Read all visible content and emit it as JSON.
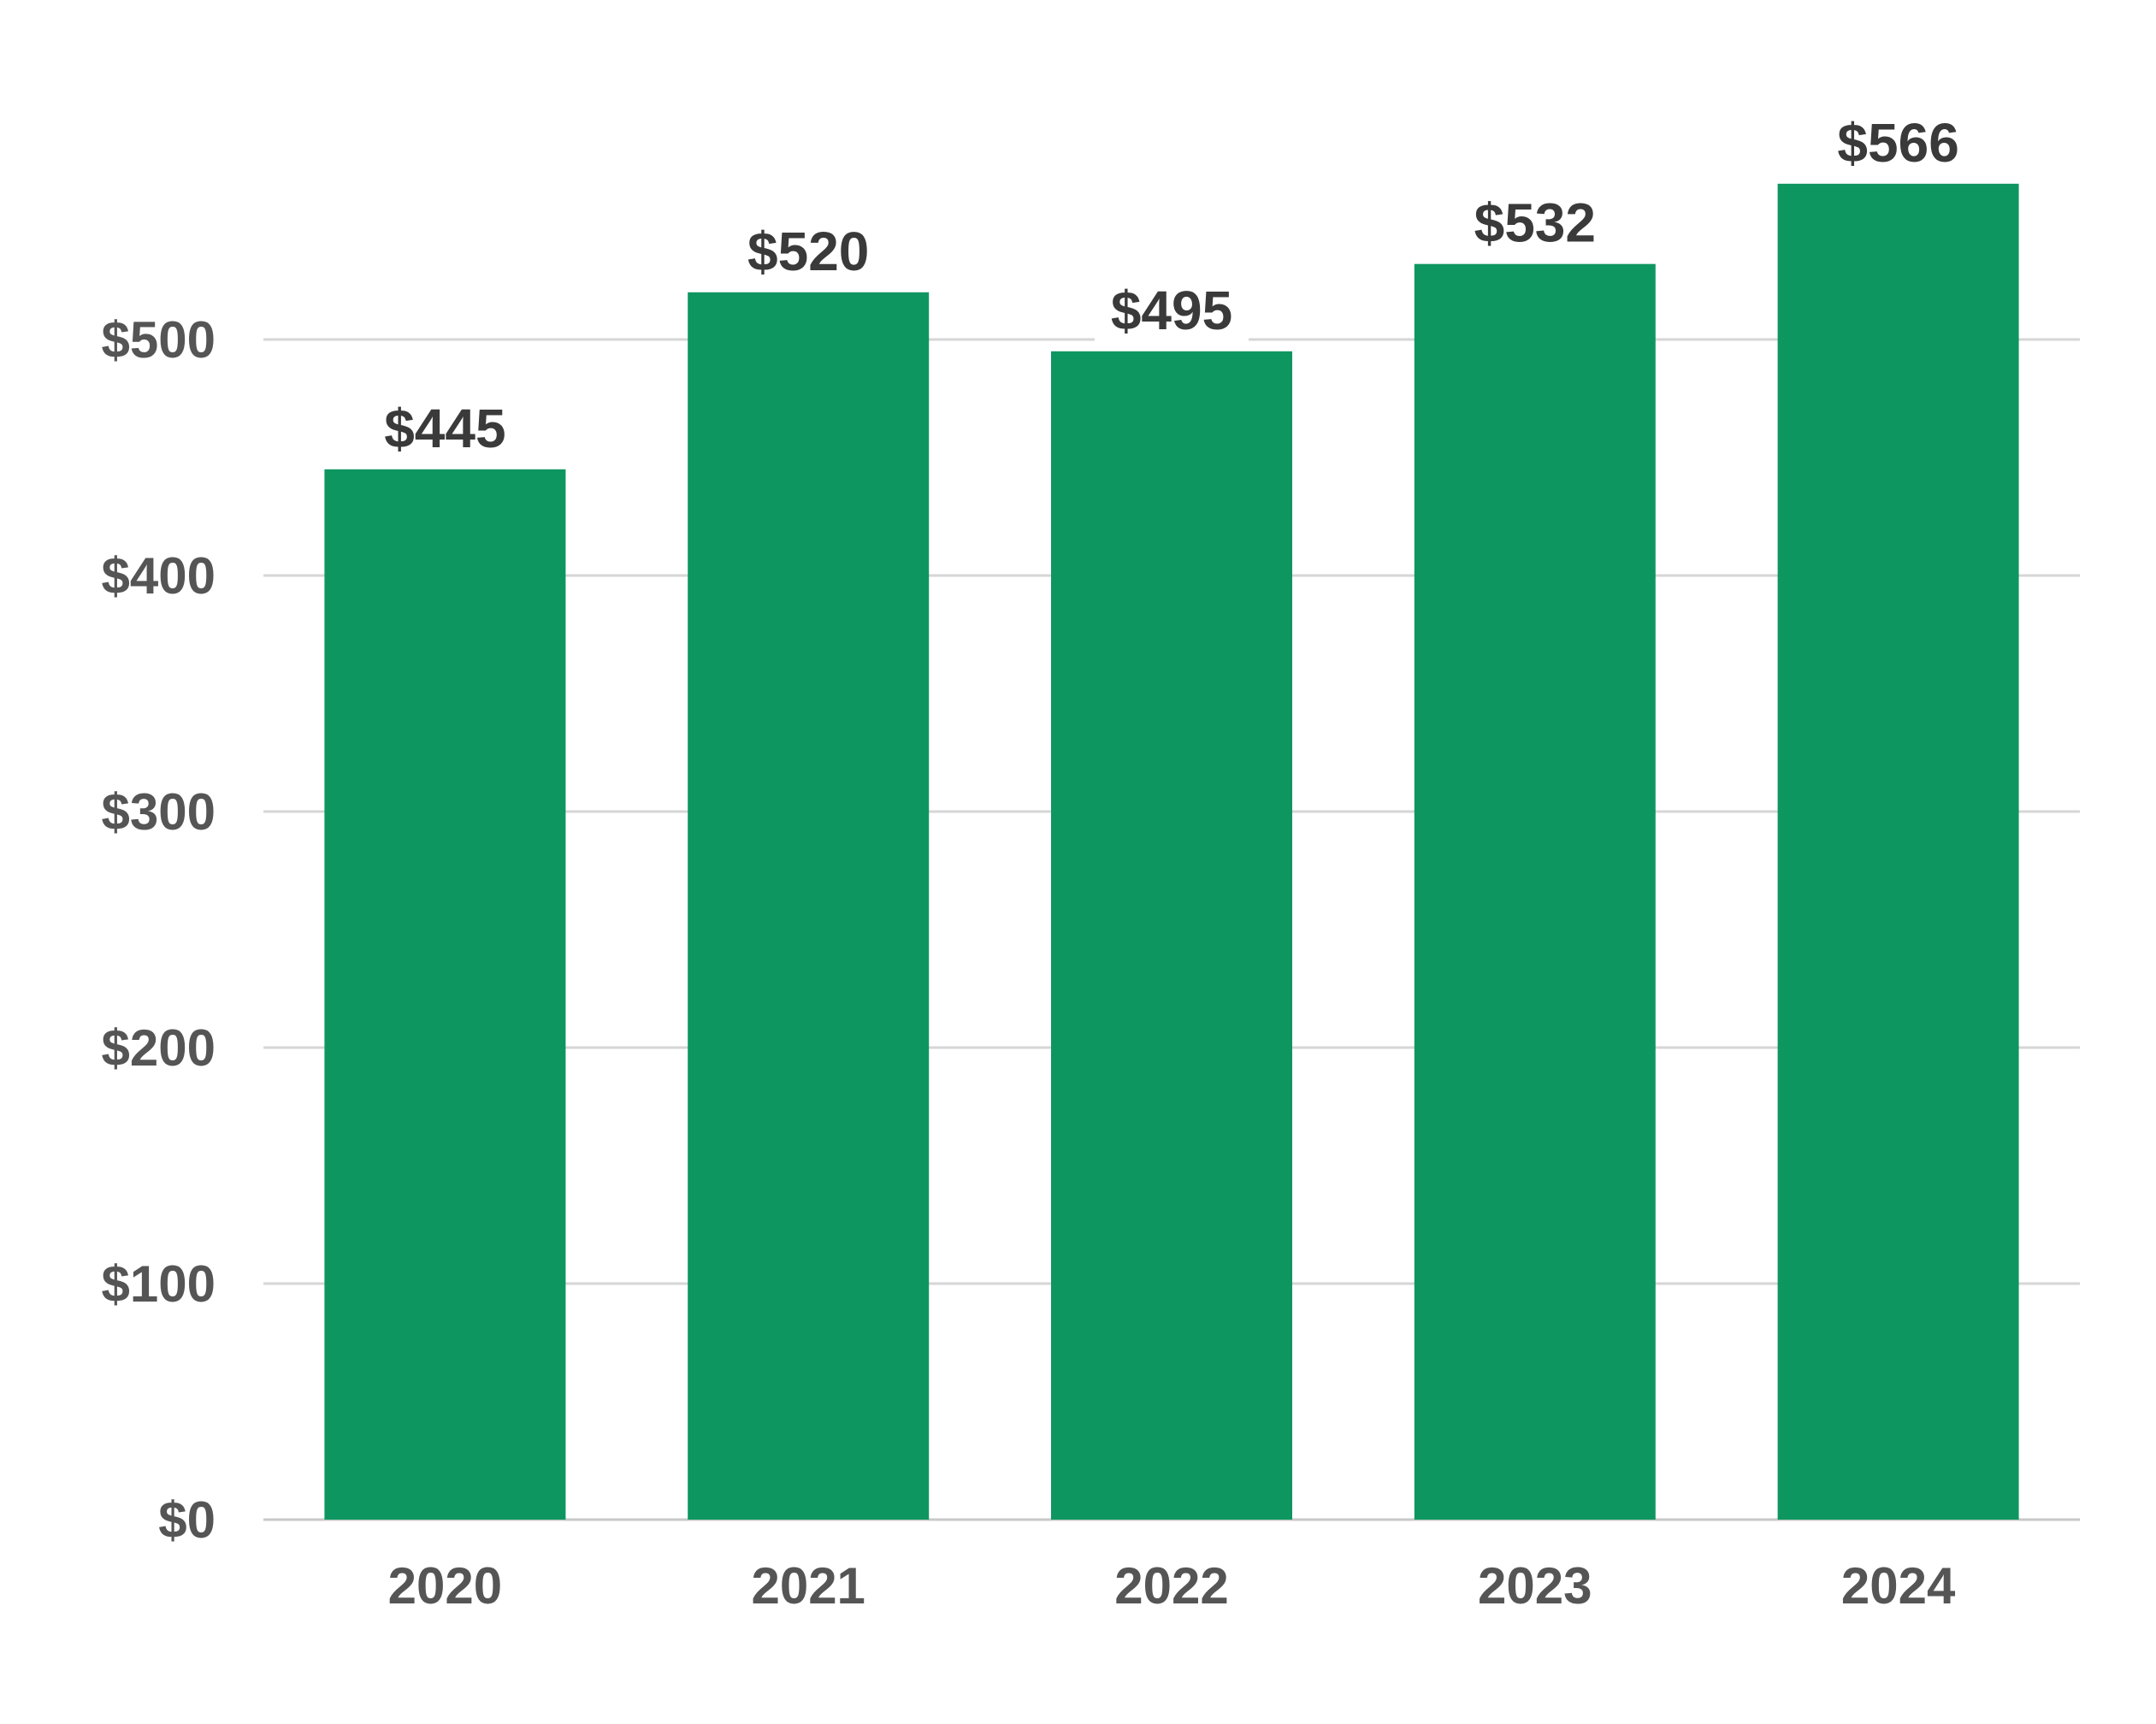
{
  "chart_data": {
    "type": "bar",
    "title": "",
    "xlabel": "",
    "ylabel": "",
    "categories": [
      "2020",
      "2021",
      "2022",
      "2023",
      "2024"
    ],
    "values": [
      445,
      520,
      495,
      532,
      566
    ],
    "data_labels": [
      "$445",
      "$520",
      "$495",
      "$532",
      "$566"
    ],
    "ylim": [
      0,
      600
    ],
    "yticks": [
      0,
      100,
      200,
      300,
      400,
      500
    ],
    "ytick_labels": [
      "$0",
      "$100",
      "$200",
      "$300",
      "$400",
      "$500"
    ],
    "grid": true,
    "legend": "none",
    "colors": {
      "bar": "#0e9660",
      "gridline": "#d6d6d6",
      "tick_text": "#555555",
      "label_text": "#3a3a3a"
    }
  }
}
